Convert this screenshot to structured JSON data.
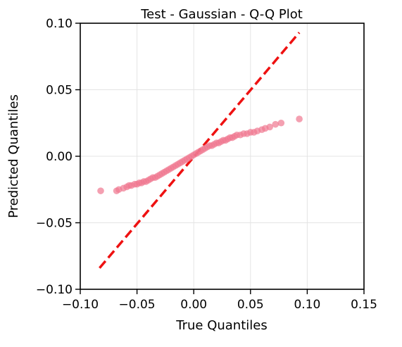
{
  "chart_data": {
    "type": "scatter",
    "title": "Test - Gaussian - Q-Q Plot",
    "xlabel": "True Quantiles",
    "ylabel": "Predicted Quantiles",
    "xlim": [
      -0.1,
      0.15
    ],
    "ylim": [
      -0.1,
      0.1
    ],
    "xticks": [
      -0.1,
      -0.05,
      0.0,
      0.05,
      0.1,
      0.15
    ],
    "xtick_labels": [
      "−0.10",
      "−0.05",
      "0.00",
      "0.05",
      "0.10",
      "0.15"
    ],
    "yticks": [
      -0.1,
      -0.05,
      0.0,
      0.05,
      0.1
    ],
    "ytick_labels": [
      "−0.10",
      "−0.05",
      "0.00",
      "0.05",
      "0.10"
    ],
    "grid": true,
    "legend": "none",
    "colors": {
      "points": "#f07890",
      "reference_line": "#ee1111"
    },
    "reference_line": {
      "x": [
        -0.083,
        0.093
      ],
      "y": [
        -0.084,
        0.093
      ]
    },
    "points": {
      "x": [
        -0.082,
        -0.068,
        -0.066,
        -0.062,
        -0.059,
        -0.057,
        -0.055,
        -0.052,
        -0.05,
        -0.048,
        -0.046,
        -0.044,
        -0.042,
        -0.04,
        -0.038,
        -0.036,
        -0.034,
        -0.032,
        -0.03,
        -0.028,
        -0.026,
        -0.024,
        -0.022,
        -0.02,
        -0.018,
        -0.016,
        -0.014,
        -0.012,
        -0.01,
        -0.008,
        -0.006,
        -0.004,
        -0.002,
        0.0,
        0.002,
        0.004,
        0.006,
        0.008,
        0.01,
        0.012,
        0.014,
        0.016,
        0.018,
        0.02,
        0.022,
        0.024,
        0.026,
        0.028,
        0.03,
        0.032,
        0.034,
        0.036,
        0.038,
        0.041,
        0.044,
        0.047,
        0.05,
        0.053,
        0.056,
        0.06,
        0.063,
        0.067,
        0.072,
        0.077,
        0.093
      ],
      "y": [
        -0.026,
        -0.026,
        -0.025,
        -0.024,
        -0.023,
        -0.022,
        -0.022,
        -0.021,
        -0.021,
        -0.02,
        -0.02,
        -0.019,
        -0.019,
        -0.018,
        -0.017,
        -0.016,
        -0.016,
        -0.015,
        -0.014,
        -0.013,
        -0.012,
        -0.011,
        -0.01,
        -0.009,
        -0.008,
        -0.007,
        -0.006,
        -0.005,
        -0.004,
        -0.003,
        -0.002,
        -0.001,
        0.0,
        0.001,
        0.002,
        0.003,
        0.004,
        0.005,
        0.006,
        0.007,
        0.008,
        0.008,
        0.009,
        0.01,
        0.01,
        0.011,
        0.012,
        0.012,
        0.013,
        0.014,
        0.014,
        0.015,
        0.016,
        0.016,
        0.017,
        0.017,
        0.018,
        0.018,
        0.019,
        0.02,
        0.021,
        0.022,
        0.024,
        0.025,
        0.028
      ]
    }
  }
}
